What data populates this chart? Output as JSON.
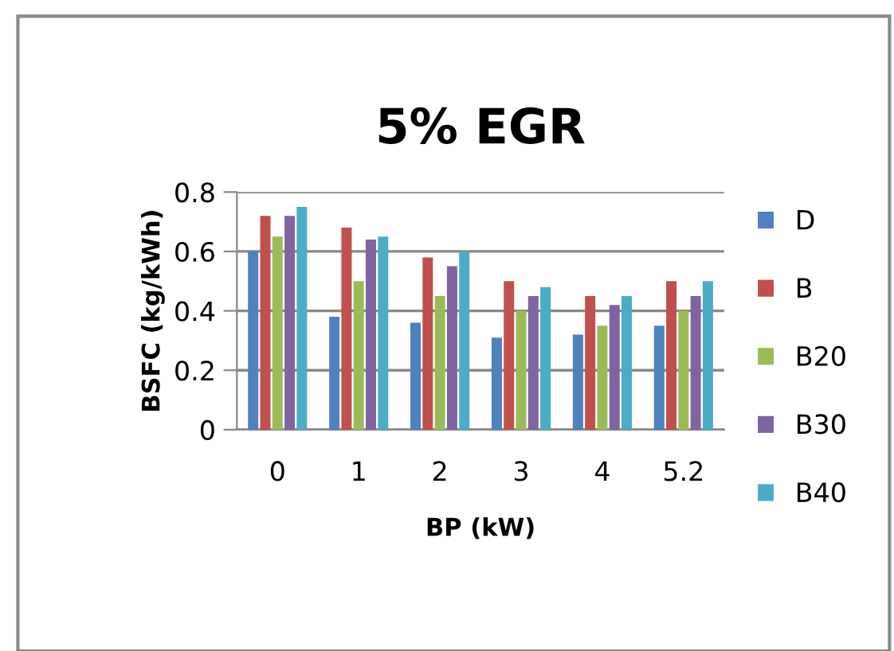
{
  "chart_data": {
    "type": "bar",
    "title": "5% EGR",
    "xlabel": "BP (kW)",
    "ylabel": "BSFC (kg/kWh)",
    "categories": [
      "0",
      "1",
      "2",
      "3",
      "4",
      "5.2"
    ],
    "series": [
      {
        "name": "D",
        "color": "#4f81bd",
        "values": [
          0.6,
          0.38,
          0.36,
          0.31,
          0.32,
          0.35
        ]
      },
      {
        "name": "B",
        "color": "#c0504d",
        "values": [
          0.72,
          0.68,
          0.58,
          0.5,
          0.45,
          0.5
        ]
      },
      {
        "name": "B20",
        "color": "#9bbb59",
        "values": [
          0.65,
          0.5,
          0.45,
          0.4,
          0.35,
          0.4
        ]
      },
      {
        "name": "B30",
        "color": "#8064a2",
        "values": [
          0.72,
          0.64,
          0.55,
          0.45,
          0.42,
          0.45
        ]
      },
      {
        "name": "B40",
        "color": "#4bacc6",
        "values": [
          0.75,
          0.65,
          0.6,
          0.48,
          0.45,
          0.5
        ]
      }
    ],
    "ylim": [
      0,
      0.8
    ],
    "yticks": [
      {
        "value": 0,
        "label": "0"
      },
      0.2,
      0.4,
      0.6,
      0.8
    ],
    "grid": "y",
    "legend": "right"
  }
}
